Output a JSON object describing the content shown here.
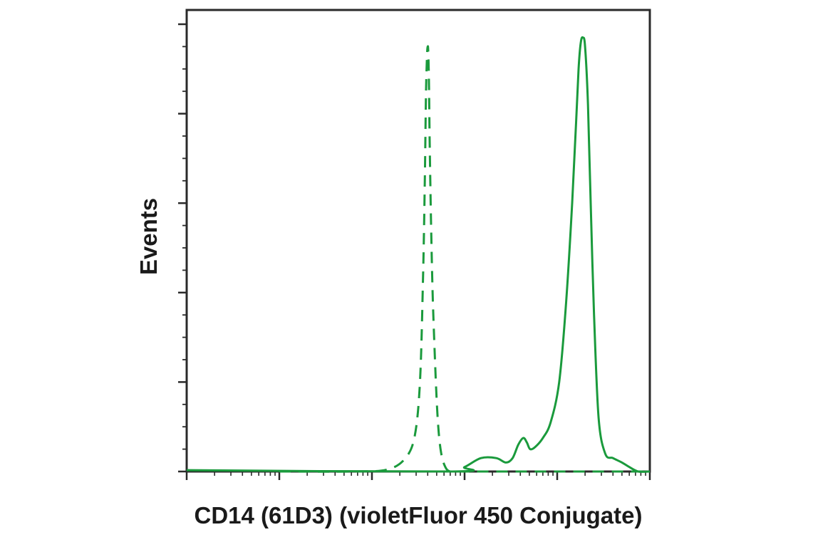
{
  "chart_data": {
    "type": "line",
    "title": "",
    "xlabel": "CD14 (61D3) (violetFluor 450 Conjugate)",
    "ylabel": "Events",
    "x_scale": "log",
    "xlim": [
      1,
      100000
    ],
    "ylim": [
      0,
      100
    ],
    "grid": false,
    "legend": "none",
    "tick_labels_shown": false,
    "series": [
      {
        "style": "dashed",
        "color": "#1a9a3c",
        "x": [
          10,
          70,
          150,
          230,
          290,
          330,
          355,
          372,
          383,
          393,
          400,
          405,
          412,
          420,
          435,
          455,
          490,
          520,
          560,
          620,
          700,
          900,
          3000,
          100000
        ],
        "y": [
          0,
          0,
          0.5,
          3,
          8,
          20,
          42,
          65,
          84,
          93,
          95,
          94,
          88,
          74,
          55,
          38,
          20,
          10,
          4,
          1,
          0,
          0,
          0,
          0
        ]
      },
      {
        "style": "solid",
        "color": "#1a9a3c",
        "x": [
          1,
          700,
          1000,
          1500,
          2200,
          2800,
          3300,
          3800,
          4300,
          4700,
          5100,
          5800,
          7000,
          8500,
          10500,
          12500,
          14500,
          16000,
          17000,
          18000,
          19000,
          20000,
          21500,
          23000,
          25000,
          28000,
          33000,
          40000,
          50000,
          60000,
          75000,
          100000
        ],
        "y": [
          0.3,
          0,
          1,
          3,
          3,
          2,
          3,
          6,
          7.5,
          6.5,
          5,
          5.5,
          7.5,
          11,
          20,
          38,
          60,
          78,
          90,
          96,
          97,
          95,
          82,
          60,
          35,
          12,
          4,
          3,
          2,
          1,
          0,
          0
        ]
      }
    ]
  }
}
